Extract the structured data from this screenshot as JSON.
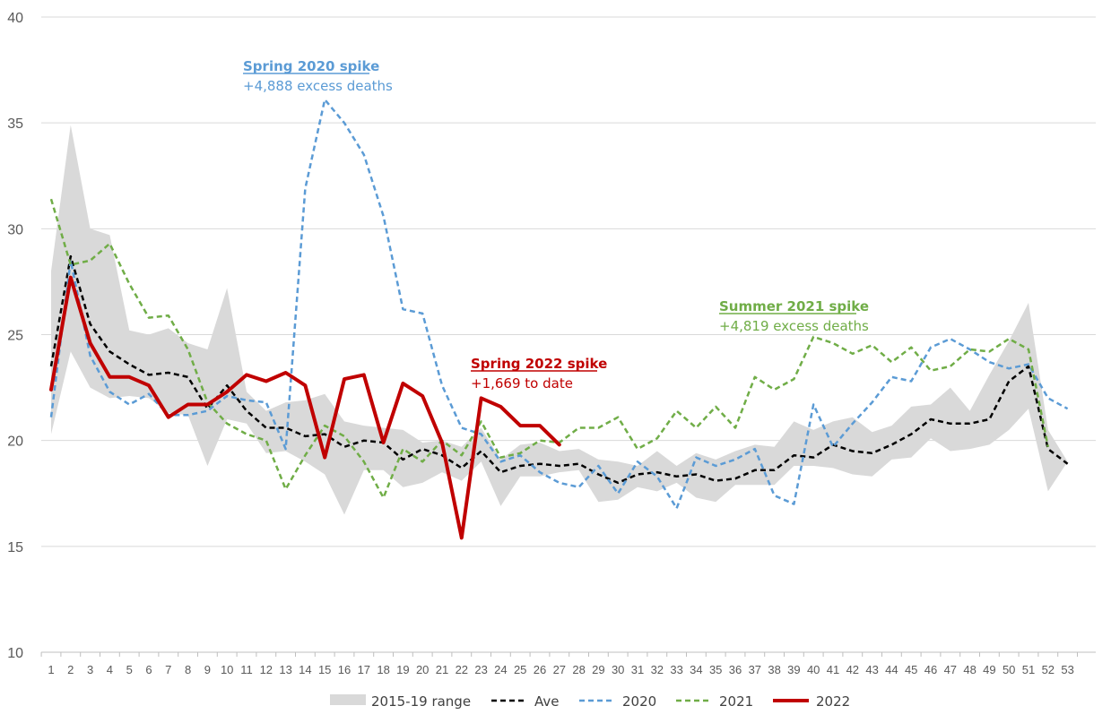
{
  "chart_data": {
    "type": "line",
    "ylim": [
      10,
      40
    ],
    "yticks": [
      10,
      15,
      20,
      25,
      30,
      35,
      40
    ],
    "x": [
      1,
      2,
      3,
      4,
      5,
      6,
      7,
      8,
      9,
      10,
      11,
      12,
      13,
      14,
      15,
      16,
      17,
      18,
      19,
      20,
      21,
      22,
      23,
      24,
      25,
      26,
      27,
      28,
      29,
      30,
      31,
      32,
      33,
      34,
      35,
      36,
      37,
      38,
      39,
      40,
      41,
      42,
      43,
      44,
      45,
      46,
      47,
      48,
      49,
      50,
      51,
      52,
      53
    ],
    "grid": "horizontal",
    "legend_position": "bottom",
    "range": {
      "name": "2015-19 range",
      "color": "#d9d9d9",
      "lower": [
        20.3,
        24.2,
        22.5,
        22.0,
        22.1,
        22.0,
        21.3,
        21.2,
        18.8,
        21.0,
        20.8,
        19.4,
        19.5,
        19.0,
        18.4,
        16.5,
        18.6,
        18.6,
        17.8,
        18.0,
        18.5,
        18.1,
        19.0,
        16.9,
        18.3,
        18.3,
        18.5,
        18.6,
        17.1,
        17.2,
        17.8,
        17.6,
        18.0,
        17.3,
        17.1,
        17.9,
        17.9,
        17.9,
        18.8,
        18.8,
        18.7,
        18.4,
        18.3,
        19.1,
        19.2,
        20.1,
        19.5,
        19.6,
        19.8,
        20.5,
        21.5,
        17.6,
        19.0
      ],
      "upper": [
        28.0,
        34.9,
        30.0,
        29.7,
        25.2,
        25.0,
        25.3,
        24.6,
        24.3,
        27.2,
        22.3,
        21.4,
        21.8,
        21.9,
        22.2,
        20.9,
        20.7,
        20.6,
        20.5,
        19.9,
        20.0,
        19.7,
        20.6,
        19.1,
        19.8,
        19.9,
        19.5,
        19.6,
        19.1,
        19.0,
        18.8,
        19.5,
        18.8,
        19.4,
        19.1,
        19.5,
        19.8,
        19.7,
        20.9,
        20.5,
        20.9,
        21.1,
        20.4,
        20.7,
        21.6,
        21.7,
        22.5,
        21.4,
        23.1,
        24.7,
        26.5,
        20.5,
        19.0
      ]
    },
    "series": [
      {
        "name": "Ave",
        "color": "#000000",
        "dash": "dashed",
        "values": [
          23.5,
          28.7,
          25.5,
          24.2,
          23.6,
          23.1,
          23.2,
          23.0,
          21.5,
          22.6,
          21.4,
          20.6,
          20.6,
          20.2,
          20.3,
          19.7,
          20.0,
          19.9,
          19.1,
          19.6,
          19.3,
          18.7,
          19.5,
          18.5,
          18.8,
          18.9,
          18.8,
          18.9,
          18.4,
          18.0,
          18.4,
          18.5,
          18.3,
          18.4,
          18.1,
          18.2,
          18.6,
          18.6,
          19.3,
          19.2,
          19.8,
          19.5,
          19.4,
          19.8,
          20.3,
          21.0,
          20.8,
          20.8,
          21.0,
          22.8,
          23.5,
          19.6,
          18.9
        ]
      },
      {
        "name": "2020",
        "color": "#5b9bd5",
        "dash": "dashed",
        "values": [
          21.1,
          28.5,
          24.0,
          22.3,
          21.7,
          22.2,
          21.2,
          21.2,
          21.4,
          22.1,
          21.9,
          21.8,
          19.6,
          31.9,
          36.1,
          35.0,
          33.5,
          30.6,
          26.2,
          26.0,
          22.6,
          20.6,
          20.3,
          19.0,
          19.3,
          18.5,
          18.0,
          17.8,
          18.8,
          17.5,
          19.0,
          18.3,
          16.8,
          19.2,
          18.8,
          19.1,
          19.6,
          17.4,
          17.0,
          21.7,
          19.7,
          20.8,
          21.8,
          23.0,
          22.8,
          24.4,
          24.8,
          24.3,
          23.7,
          23.4,
          23.6,
          22.0,
          21.5
        ]
      },
      {
        "name": "2021",
        "color": "#70ad47",
        "dash": "dashed",
        "values": [
          31.4,
          28.3,
          28.5,
          29.3,
          27.4,
          25.8,
          25.9,
          24.3,
          21.8,
          20.8,
          20.3,
          20.0,
          17.7,
          19.3,
          20.7,
          20.2,
          19.0,
          17.3,
          19.6,
          19.0,
          20.0,
          19.3,
          20.9,
          19.2,
          19.4,
          20.0,
          19.9,
          20.6,
          20.6,
          21.1,
          19.6,
          20.1,
          21.4,
          20.6,
          21.6,
          20.6,
          23.0,
          22.4,
          22.9,
          24.9,
          24.6,
          24.1,
          24.5,
          23.7,
          24.4,
          23.3,
          23.5,
          24.3,
          24.2,
          24.8,
          24.3,
          19.7,
          null
        ]
      },
      {
        "name": "2022",
        "color": "#c00000",
        "dash": "solid",
        "values": [
          22.4,
          27.7,
          24.6,
          23.0,
          23.0,
          22.6,
          21.1,
          21.7,
          21.7,
          22.3,
          23.1,
          22.8,
          23.2,
          22.6,
          19.2,
          22.9,
          23.1,
          19.9,
          22.7,
          22.1,
          19.9,
          15.4,
          22.0,
          21.6,
          20.7,
          20.7,
          19.8,
          null,
          null,
          null,
          null,
          null,
          null,
          null,
          null,
          null,
          null,
          null,
          null,
          null,
          null,
          null,
          null,
          null,
          null,
          null,
          null,
          null,
          null,
          null,
          null,
          null,
          null
        ]
      }
    ],
    "annotations": [
      {
        "title": "Spring 2020 spike",
        "text": "+4,888 excess deaths",
        "color": "#5b9bd5"
      },
      {
        "title": "Summer 2021 spike",
        "text": "+4,819 excess deaths",
        "color": "#70ad47"
      },
      {
        "title": "Spring 2022 spike",
        "text": "+1,669 to date",
        "color": "#c00000"
      }
    ]
  }
}
